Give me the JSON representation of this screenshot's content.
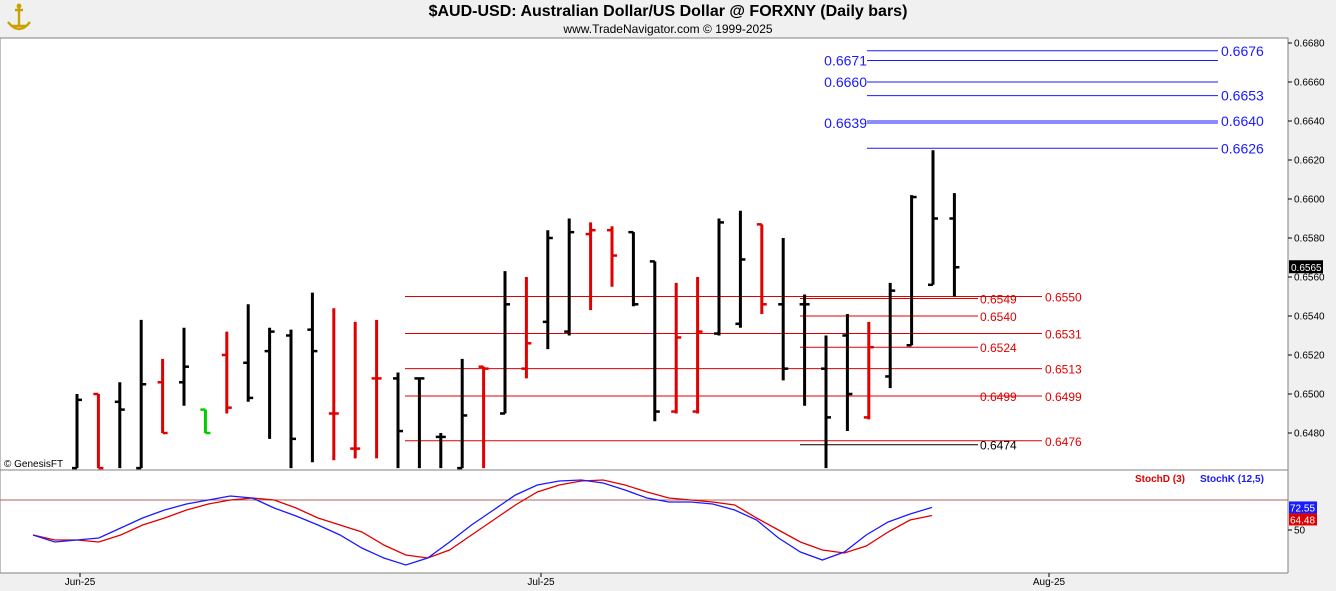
{
  "header": {
    "title": "$AUD-USD:  Australian Dollar/US Dollar @ FORXNY  (Daily bars)",
    "subtitle": "www.TradeNavigator.com © 1999-2025",
    "watermark": "© GenesisFT"
  },
  "colors": {
    "up_bar": "#000000",
    "down_bar": "#e00000",
    "highlight_bar": "#00cc00",
    "blue_level": "#1a1aff",
    "red_level": "#e00000",
    "stochK": "#1a1aff",
    "stochD": "#e00000",
    "panel_bg": "#ffffff",
    "page_bg": "#f0f0f0"
  },
  "chart_data": [
    {
      "type": "ohlc",
      "title": "$AUD-USD:  Australian Dollar/US Dollar @ FORXNY  (Daily bars)",
      "ylim": [
        0.6462,
        0.6684
      ],
      "y_ticks": [
        "0.6480",
        "0.6500",
        "0.6520",
        "0.6540",
        "0.6560",
        "0.6580",
        "0.6600",
        "0.6620",
        "0.6640",
        "0.6660",
        "0.6680"
      ],
      "x_ticks": [
        "Jun-25",
        "Jul-25",
        "Aug-25"
      ],
      "last_price": "0.6565",
      "bars": [
        {
          "o": 0.6462,
          "h": 0.65,
          "l": 0.6462,
          "c": 0.6497,
          "dir": "up"
        },
        {
          "o": 0.65,
          "h": 0.65,
          "l": 0.6462,
          "c": 0.6462,
          "dir": "down"
        },
        {
          "o": 0.6496,
          "h": 0.6506,
          "l": 0.6462,
          "c": 0.6492,
          "dir": "up"
        },
        {
          "o": 0.6462,
          "h": 0.6538,
          "l": 0.6462,
          "c": 0.6505,
          "dir": "up"
        },
        {
          "o": 0.6506,
          "h": 0.6518,
          "l": 0.648,
          "c": 0.648,
          "dir": "down"
        },
        {
          "o": 0.6506,
          "h": 0.6534,
          "l": 0.6494,
          "c": 0.6514,
          "dir": "up"
        },
        {
          "o": 0.6492,
          "h": 0.6492,
          "l": 0.648,
          "c": 0.648,
          "dir": "highlight"
        },
        {
          "o": 0.652,
          "h": 0.6532,
          "l": 0.649,
          "c": 0.6493,
          "dir": "down"
        },
        {
          "o": 0.6516,
          "h": 0.6546,
          "l": 0.6496,
          "c": 0.6498,
          "dir": "up"
        },
        {
          "o": 0.6522,
          "h": 0.6534,
          "l": 0.6477,
          "c": 0.6532,
          "dir": "up"
        },
        {
          "o": 0.653,
          "h": 0.6533,
          "l": 0.6462,
          "c": 0.6477,
          "dir": "up"
        },
        {
          "o": 0.6533,
          "h": 0.6552,
          "l": 0.6465,
          "c": 0.6522,
          "dir": "up"
        },
        {
          "o": 0.649,
          "h": 0.6544,
          "l": 0.6466,
          "c": 0.649,
          "dir": "down"
        },
        {
          "o": 0.6472,
          "h": 0.6537,
          "l": 0.6467,
          "c": 0.6472,
          "dir": "down"
        },
        {
          "o": 0.6508,
          "h": 0.6538,
          "l": 0.6467,
          "c": 0.6508,
          "dir": "down"
        },
        {
          "o": 0.6508,
          "h": 0.6511,
          "l": 0.6462,
          "c": 0.6481,
          "dir": "up"
        },
        {
          "o": 0.6508,
          "h": 0.6508,
          "l": 0.6462,
          "c": 0.6508,
          "dir": "up"
        },
        {
          "o": 0.6478,
          "h": 0.648,
          "l": 0.6462,
          "c": 0.6478,
          "dir": "up"
        },
        {
          "o": 0.6462,
          "h": 0.6518,
          "l": 0.6462,
          "c": 0.6489,
          "dir": "up"
        },
        {
          "o": 0.6514,
          "h": 0.6514,
          "l": 0.6462,
          "c": 0.6513,
          "dir": "down"
        },
        {
          "o": 0.649,
          "h": 0.6563,
          "l": 0.649,
          "c": 0.6546,
          "dir": "up"
        },
        {
          "o": 0.6513,
          "h": 0.656,
          "l": 0.6508,
          "c": 0.6526,
          "dir": "down"
        },
        {
          "o": 0.6537,
          "h": 0.6584,
          "l": 0.6523,
          "c": 0.658,
          "dir": "up"
        },
        {
          "o": 0.6532,
          "h": 0.659,
          "l": 0.653,
          "c": 0.6583,
          "dir": "up"
        },
        {
          "o": 0.6582,
          "h": 0.6588,
          "l": 0.6543,
          "c": 0.6584,
          "dir": "down"
        },
        {
          "o": 0.6584,
          "h": 0.6586,
          "l": 0.6555,
          "c": 0.6571,
          "dir": "down"
        },
        {
          "o": 0.6583,
          "h": 0.6583,
          "l": 0.6545,
          "c": 0.6546,
          "dir": "up"
        },
        {
          "o": 0.6568,
          "h": 0.6568,
          "l": 0.6486,
          "c": 0.6491,
          "dir": "up"
        },
        {
          "o": 0.6491,
          "h": 0.6557,
          "l": 0.649,
          "c": 0.6529,
          "dir": "down"
        },
        {
          "o": 0.6491,
          "h": 0.656,
          "l": 0.649,
          "c": 0.6532,
          "dir": "down"
        },
        {
          "o": 0.6531,
          "h": 0.659,
          "l": 0.653,
          "c": 0.6588,
          "dir": "up"
        },
        {
          "o": 0.6536,
          "h": 0.6594,
          "l": 0.6534,
          "c": 0.6569,
          "dir": "up"
        },
        {
          "o": 0.6587,
          "h": 0.6587,
          "l": 0.6541,
          "c": 0.6546,
          "dir": "down"
        },
        {
          "o": 0.6546,
          "h": 0.658,
          "l": 0.6507,
          "c": 0.6513,
          "dir": "up"
        },
        {
          "o": 0.6546,
          "h": 0.6551,
          "l": 0.6494,
          "c": 0.6546,
          "dir": "up"
        },
        {
          "o": 0.6513,
          "h": 0.653,
          "l": 0.6462,
          "c": 0.6488,
          "dir": "up"
        },
        {
          "o": 0.653,
          "h": 0.6541,
          "l": 0.6481,
          "c": 0.65,
          "dir": "up"
        },
        {
          "o": 0.6488,
          "h": 0.6537,
          "l": 0.6487,
          "c": 0.6524,
          "dir": "down"
        },
        {
          "o": 0.6509,
          "h": 0.6557,
          "l": 0.6503,
          "c": 0.6553,
          "dir": "up"
        },
        {
          "o": 0.6525,
          "h": 0.6602,
          "l": 0.6525,
          "c": 0.6601,
          "dir": "up"
        },
        {
          "o": 0.6556,
          "h": 0.6625,
          "l": 0.6556,
          "c": 0.659,
          "dir": "up"
        },
        {
          "o": 0.659,
          "h": 0.6603,
          "l": 0.655,
          "c": 0.6565,
          "dir": "up"
        }
      ],
      "levels": [
        {
          "value": "0.6676",
          "color": "blue",
          "side": "right"
        },
        {
          "value": "0.6671",
          "color": "blue",
          "side": "left"
        },
        {
          "value": "0.6660",
          "color": "blue",
          "side": "left"
        },
        {
          "value": "0.6653",
          "color": "blue",
          "side": "right"
        },
        {
          "value": "0.6639",
          "color": "blue",
          "side": "left"
        },
        {
          "value": "0.6640",
          "color": "blue",
          "side": "right"
        },
        {
          "value": "0.6626",
          "color": "blue",
          "side": "right"
        },
        {
          "value": "0.6550",
          "color": "red",
          "side": "right"
        },
        {
          "value": "0.6549",
          "color": "red",
          "side": "left"
        },
        {
          "value": "0.6540",
          "color": "red",
          "side": "left"
        },
        {
          "value": "0.6531",
          "color": "red",
          "side": "right"
        },
        {
          "value": "0.6524",
          "color": "red",
          "side": "left"
        },
        {
          "value": "0.6513",
          "color": "red",
          "side": "right"
        },
        {
          "value": "0.6499",
          "color": "red",
          "side": "left"
        },
        {
          "value": "0.6499",
          "color": "red",
          "side": "right"
        },
        {
          "value": "0.6476",
          "color": "red",
          "side": "right"
        },
        {
          "value": "0.6474",
          "color": "black",
          "side": "left"
        }
      ]
    },
    {
      "type": "line",
      "title": "",
      "ylim": [
        0,
        100
      ],
      "y_ticks": [
        "50"
      ],
      "reference_line": 80,
      "series": [
        {
          "name": "StochD (3)",
          "color": "red",
          "last": "64.48",
          "values": [
            45,
            40,
            40,
            38,
            45,
            55,
            62,
            70,
            76,
            80,
            82,
            80,
            72,
            62,
            55,
            48,
            35,
            25,
            22,
            30,
            45,
            60,
            75,
            88,
            95,
            99,
            100,
            95,
            88,
            82,
            80,
            78,
            75,
            62,
            50,
            38,
            30,
            27,
            34,
            48,
            60,
            64.48
          ]
        },
        {
          "name": "StochK (12,5)",
          "color": "blue",
          "last": "72.55",
          "values": [
            45,
            38,
            40,
            42,
            52,
            62,
            70,
            76,
            80,
            84,
            82,
            72,
            64,
            55,
            45,
            32,
            22,
            15,
            22,
            38,
            55,
            70,
            85,
            95,
            99,
            100,
            97,
            90,
            82,
            78,
            78,
            76,
            70,
            60,
            42,
            28,
            20,
            28,
            45,
            58,
            66,
            72.55
          ]
        }
      ]
    }
  ]
}
